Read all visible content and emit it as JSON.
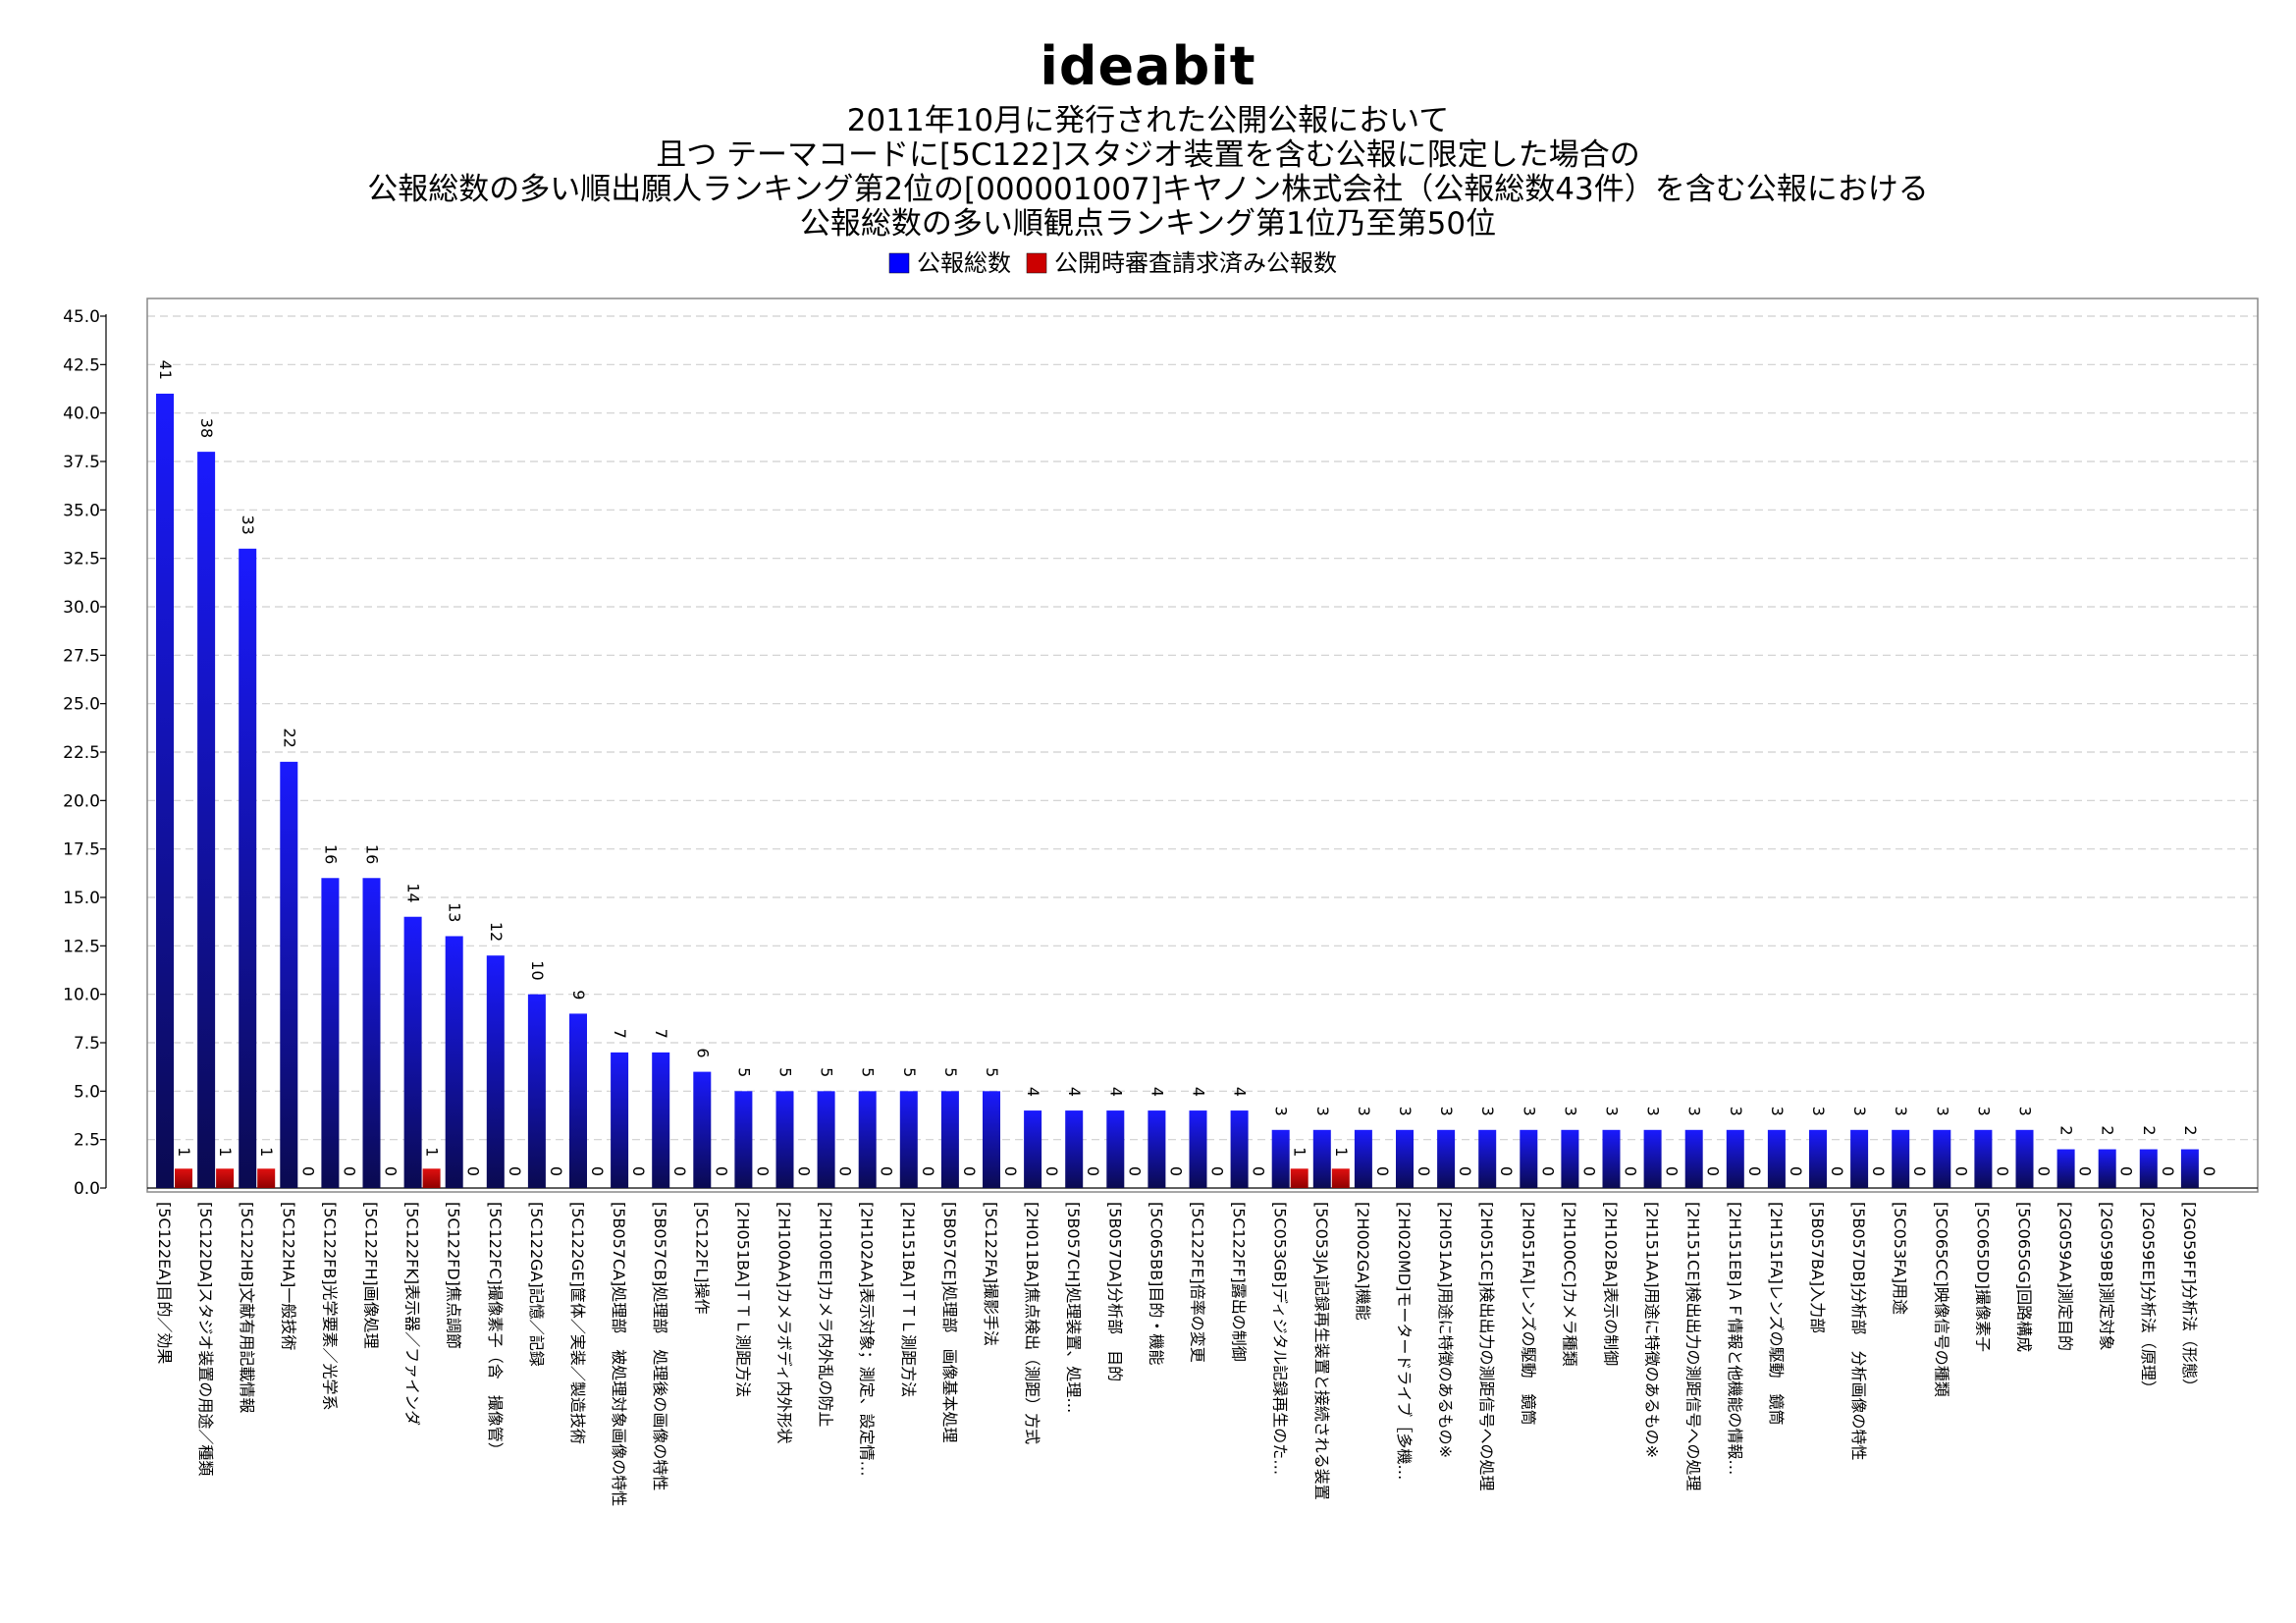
{
  "brand": "ideabit",
  "chart_data": {
    "type": "bar",
    "title_lines": [
      "2011年10月に発行された公開公報において",
      "且つ テーマコードに[5C122]スタジオ装置を含む公報に限定した場合の",
      "公報総数の多い順出願人ランキング第2位の[000001007]キヤノン株式会社（公報総数43件）を含む公報における",
      "公報総数の多い順観点ランキング第1位乃至第50位"
    ],
    "legend_position": "top-center",
    "ylim": [
      0,
      45
    ],
    "yticks": [
      "0.0",
      "2.5",
      "5.0",
      "7.5",
      "10.0",
      "12.5",
      "15.0",
      "17.5",
      "20.0",
      "22.5",
      "25.0",
      "27.5",
      "30.0",
      "32.5",
      "35.0",
      "37.5",
      "40.0",
      "42.5",
      "45.0"
    ],
    "grid": true,
    "categories": [
      "[5C122EA]目的／効果",
      "[5C122DA]スタジオ装置の用途／種類",
      "[5C122HB]文献有用記載情報",
      "[5C122HA]一般技術",
      "[5C122FB]光学要素／光学系",
      "[5C122FH]画像処理",
      "[5C122FK]表示器／ファインダ",
      "[5C122FD]焦点調節",
      "[5C122FC]撮像素子（含　撮像管）",
      "[5C122GA]記憶／記録",
      "[5C122GE]筐体／実装／製造技術",
      "[5B057CA]処理部　被処理対象画像の特性",
      "[5B057CB]処理部　処理後の画像の特性",
      "[5C122FL]操作",
      "[2H051BA]ＴＴＬ測距方法",
      "[2H100AA]カメラボディ内外形状",
      "[2H100EE]カメラ内外乱の防止",
      "[2H102AA]表示対象；測定、設定情…",
      "[2H151BA]ＴＴＬ測距方法",
      "[5B057CE]処理部　画像基本処理",
      "[5C122FA]撮影手法",
      "[2H011BA]焦点検出（測距）方式",
      "[5B057CH]処理装置、処理…",
      "[5B057DA]分析部　目的",
      "[5C065BB]目的・機能",
      "[5C122FE]倍率の変更",
      "[5C122FF]露出の制御",
      "[5C053GB]ディジタル記録再生のた…",
      "[5C053JA]記録再生装置と接続される装置",
      "[2H002GA]機能",
      "[2H020MD]モータードライブ［多機…",
      "[2H051AA]用途に特徴のあるもの※",
      "[2H051CE]検出出力の測距信号への処理",
      "[2H051FA]レンズの駆動　鏡筒",
      "[2H100CC]カメラ種類",
      "[2H102BA]表示の制御",
      "[2H151AA]用途に特徴のあるもの※",
      "[2H151CE]検出出力の測距信号への処理",
      "[2H151EB]ＡＦ情報と他機能の情報…",
      "[2H151FA]レンズの駆動　鏡筒",
      "[5B057BA]入力部",
      "[5B057DB]分析部　分析画像の特性",
      "[5C053FA]用途",
      "[5C065CC]映像信号の種類",
      "[5C065DD]撮像素子",
      "[5C065GG]回路構成",
      "[2G059AA]測定目的",
      "[2G059BB]測定対象",
      "[2G059EE]分析法（原理）",
      "[2G059FF]分析法（形態）"
    ],
    "series": [
      {
        "name": "公報総数",
        "color": "#0000ff",
        "values": [
          41,
          38,
          33,
          22,
          16,
          16,
          14,
          13,
          12,
          10,
          9,
          7,
          7,
          6,
          5,
          5,
          5,
          5,
          5,
          5,
          5,
          4,
          4,
          4,
          4,
          4,
          4,
          3,
          3,
          3,
          3,
          3,
          3,
          3,
          3,
          3,
          3,
          3,
          3,
          3,
          3,
          3,
          3,
          3,
          3,
          3,
          2,
          2,
          2,
          2
        ]
      },
      {
        "name": "公開時審査請求済み公報数",
        "color": "#cc0000",
        "values": [
          1,
          1,
          1,
          0,
          0,
          0,
          1,
          0,
          0,
          0,
          0,
          0,
          0,
          0,
          0,
          0,
          0,
          0,
          0,
          0,
          0,
          0,
          0,
          0,
          0,
          0,
          0,
          1,
          1,
          0,
          0,
          0,
          0,
          0,
          0,
          0,
          0,
          0,
          0,
          0,
          0,
          0,
          0,
          0,
          0,
          0,
          0,
          0,
          0,
          0
        ]
      }
    ]
  }
}
